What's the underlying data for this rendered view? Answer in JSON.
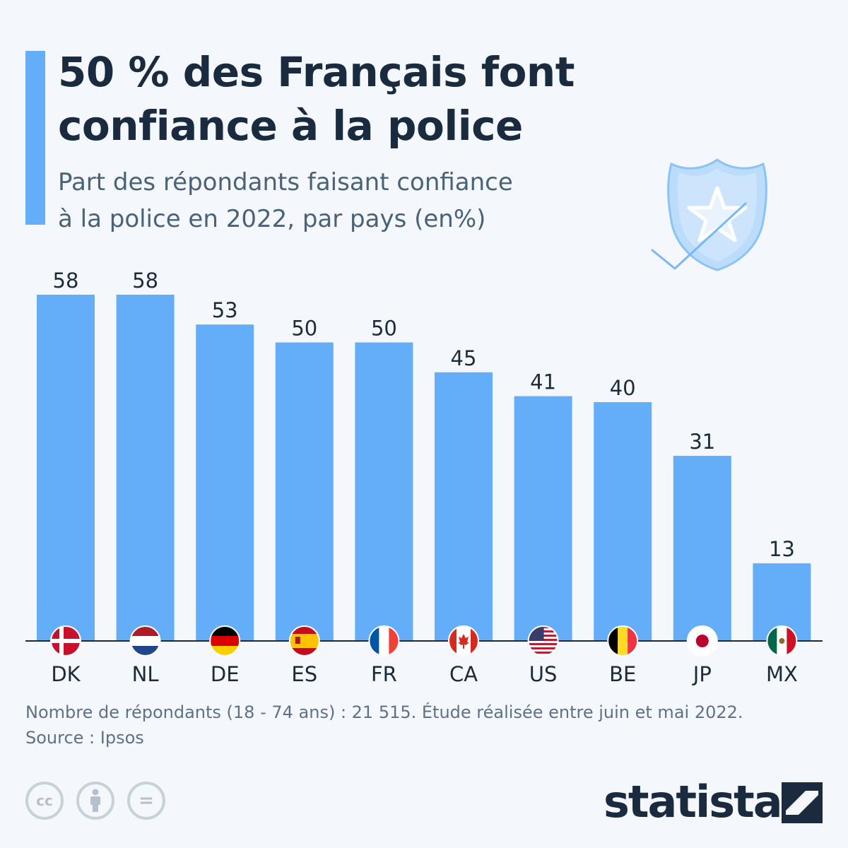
{
  "header": {
    "title_line1": "50 % des Français font",
    "title_line2": "confiance à la police",
    "subtitle_line1": "Part des répondants faisant confiance",
    "subtitle_line2": "à la police en 2022, par pays (en%)"
  },
  "colors": {
    "bar": "#64adf9",
    "accent": "#64adf9",
    "title": "#1a2b3f",
    "subtitle": "#4a6178",
    "background": "#f4f7fb"
  },
  "icons": {
    "badge": "police-badge-icon",
    "license": [
      "cc-icon",
      "attribution-icon",
      "no-derivatives-icon"
    ],
    "logo": "statista-logo"
  },
  "chart_data": {
    "type": "bar",
    "categories": [
      "DK",
      "NL",
      "DE",
      "ES",
      "FR",
      "CA",
      "US",
      "BE",
      "JP",
      "MX"
    ],
    "values": [
      58,
      58,
      53,
      50,
      50,
      45,
      41,
      40,
      31,
      13
    ],
    "flags": [
      "denmark-flag-icon",
      "netherlands-flag-icon",
      "germany-flag-icon",
      "spain-flag-icon",
      "france-flag-icon",
      "canada-flag-icon",
      "usa-flag-icon",
      "belgium-flag-icon",
      "japan-flag-icon",
      "mexico-flag-icon"
    ],
    "ylim": [
      0,
      58
    ],
    "grid": false,
    "legend": "none"
  },
  "footer": {
    "note": "Nombre de répondants (18 - 74 ans) : 21 515. Étude réalisée entre juin et mai 2022.",
    "source": "Source : Ipsos",
    "license": {
      "cc": "cc",
      "eq": "="
    },
    "logo_text": "statista"
  }
}
